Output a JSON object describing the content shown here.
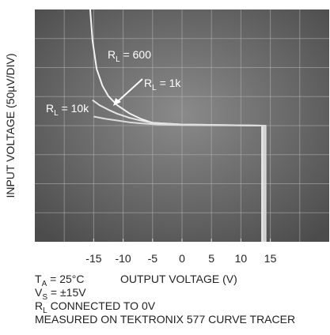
{
  "chart_data": {
    "type": "line",
    "y_label": "INPUT VOLTAGE (50µV/DIV)",
    "x_label": "OUTPUT VOLTAGE (V)",
    "xlim": [
      -25,
      25
    ],
    "ylim": [
      -205,
      205
    ],
    "xticks": [
      -15,
      -10,
      -5,
      0,
      5,
      10,
      15
    ],
    "series": [
      {
        "label": [
          "R",
          "L",
          " = 600"
        ],
        "color": "#f2f2f2",
        "x": [
          -15.6,
          -15.2,
          -14.5,
          -13.5,
          -12.5,
          -11,
          -9,
          -7,
          -5,
          0,
          13.6,
          13.6
        ],
        "values": [
          205,
          150,
          100,
          70,
          52,
          36,
          22,
          12,
          5,
          2,
          0,
          -205
        ]
      },
      {
        "label": [
          "R",
          "L",
          " = 1k"
        ],
        "color": "#e6e6e6",
        "x": [
          -15.2,
          -14,
          -12.5,
          -11,
          -9,
          -7,
          -5,
          0,
          13.9,
          13.9
        ],
        "values": [
          45,
          36,
          28,
          21,
          14,
          9,
          5,
          2,
          0,
          -205
        ]
      },
      {
        "label": [
          "R",
          "L",
          " = 10k"
        ],
        "color": "#dcdcdc",
        "x": [
          -15,
          -13,
          -11,
          -9,
          -7,
          -4,
          0,
          14.2,
          14.2
        ],
        "values": [
          16,
          12,
          9,
          6,
          4,
          2,
          1,
          0,
          -205
        ]
      }
    ],
    "notes": [
      [
        "T",
        "A",
        " = 25°C"
      ],
      [
        "V",
        "S",
        " = ±15V"
      ],
      [
        "R",
        "L",
        " CONNECTED TO 0V"
      ],
      [
        "MEASURED ON TEKTRONIX 577 CURVE TRACER"
      ]
    ]
  }
}
